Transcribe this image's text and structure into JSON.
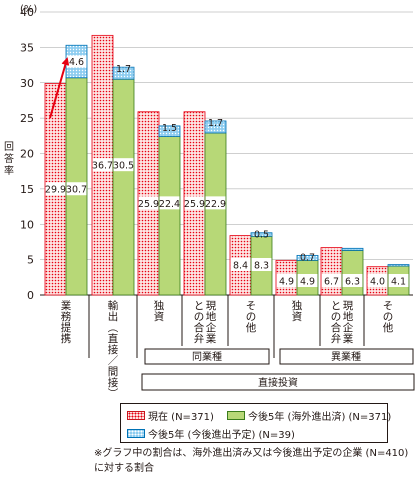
{
  "chart_data": {
    "type": "bar",
    "yunit": "(%)",
    "ylabel": "回答率",
    "ylim": [
      0,
      40
    ],
    "yticks": [
      0,
      5,
      10,
      15,
      20,
      25,
      30,
      35,
      40
    ],
    "categories": [
      "業務提携",
      "輸出(直接/間接)",
      "独資",
      "現地企業との合弁",
      "その他",
      "独資",
      "現地企業との合弁",
      "その他"
    ],
    "tick_labels": [
      [
        "業",
        "務",
        "提",
        "携"
      ],
      [
        "輸",
        "出",
        "︵",
        "直",
        "接",
        "／",
        "間",
        "接",
        "︶"
      ],
      [
        "独",
        "資"
      ],
      [
        "現地企業",
        "との合弁"
      ],
      [
        "そ",
        "の",
        "他"
      ],
      [
        "独",
        "資"
      ],
      [
        "現地企業",
        "との合弁"
      ],
      [
        "そ",
        "の",
        "他"
      ]
    ],
    "series": [
      {
        "name": "現在 (N=371)",
        "values": [
          29.9,
          36.7,
          25.9,
          25.9,
          8.4,
          4.9,
          6.7,
          4.0
        ]
      },
      {
        "name": "今後5年 (海外進出済) (N=371)",
        "values": [
          30.7,
          30.5,
          22.4,
          22.9,
          8.3,
          4.9,
          6.3,
          4.1
        ]
      },
      {
        "name": "今後5年 (今後進出予定) (N=39)",
        "values": [
          4.6,
          1.7,
          1.5,
          1.7,
          0.5,
          0.7,
          0.3,
          0.2
        ]
      }
    ],
    "stack_labels": [
      "4.6",
      "1.7",
      "1.5",
      "1.7",
      "0.5",
      "0.7",
      "",
      ""
    ],
    "groups": {
      "same_industry": "同業種",
      "different_industry": "異業種",
      "direct_investment": "直接投資"
    }
  },
  "legend": {
    "now": "現在 (N=371)",
    "future_done": "今後5年 (海外進出済) (N=371)",
    "future_plan": "今後5年 (今後進出予定) (N=39)"
  },
  "note": "※グラフ中の割合は、海外進出済み又は今後進出予定の企業 (N=410)に対する割合",
  "colors": {
    "now_fill": "#fde5e3",
    "now_dot": "#e60012",
    "future_fill": "#b7d877",
    "future_stroke": "#3a7c1c",
    "plan_fill": "#8ecdf0",
    "plan_stroke": "#0072b5",
    "arrow": "#e60012"
  }
}
